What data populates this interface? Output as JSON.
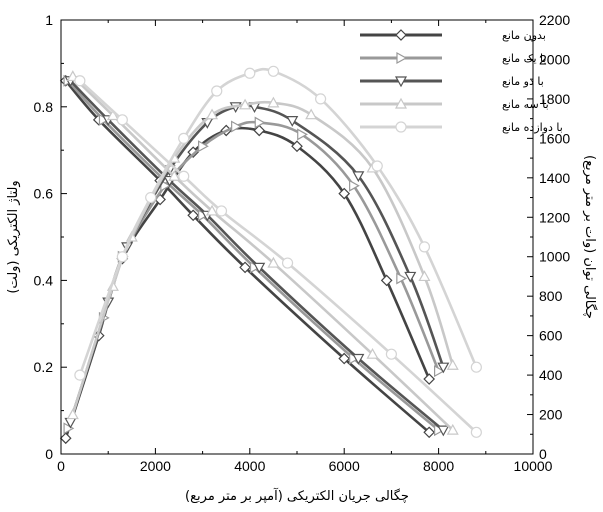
{
  "chart_data": {
    "type": "line",
    "xlabel": "چگالی جریان الکتریکی (آمپر بر متر مربع)",
    "ylabel_left": "ولتاژ الکتریکی (ولت)",
    "ylabel_right": "چگالی توان (وات بر متر مربع)",
    "xlim": [
      0,
      10000
    ],
    "ylim_left": [
      0,
      1
    ],
    "ylim_right": [
      0,
      2200
    ],
    "x_ticks": [
      "0",
      "2000",
      "4000",
      "6000",
      "8000",
      "10000"
    ],
    "y_left_ticks": [
      "0",
      "0.2",
      "0.4",
      "0.6",
      "0.8",
      "1"
    ],
    "y_right_ticks": [
      "0",
      "200",
      "400",
      "600",
      "800",
      "1000",
      "1200",
      "1400",
      "1600",
      "1800",
      "2000",
      "2200"
    ],
    "legend_position": "top-right",
    "series": [
      {
        "name": "بدون مانع",
        "color": "#444444",
        "marker": "diamond",
        "voltage": {
          "x": [
            100,
            800,
            2100,
            2800,
            3900,
            6000,
            7800
          ],
          "y": [
            0.86,
            0.77,
            0.63,
            0.55,
            0.43,
            0.22,
            0.05
          ]
        },
        "power": {
          "x": [
            100,
            800,
            1300,
            2100,
            2800,
            3500,
            4200,
            5000,
            6000,
            6900,
            7800
          ],
          "y": [
            80,
            600,
            990,
            1290,
            1530,
            1640,
            1640,
            1560,
            1320,
            880,
            380
          ]
        }
      },
      {
        "name": "با یک مانع",
        "color": "#999999",
        "marker": "triangle-right",
        "voltage": {
          "x": [
            150,
            900,
            2200,
            3000,
            4100,
            6200,
            8000
          ],
          "y": [
            0.86,
            0.77,
            0.63,
            0.55,
            0.43,
            0.22,
            0.055
          ]
        },
        "power": {
          "x": [
            150,
            900,
            1300,
            2200,
            3000,
            3700,
            4200,
            5100,
            6200,
            7200,
            8000
          ],
          "y": [
            130,
            690,
            1000,
            1360,
            1560,
            1660,
            1680,
            1620,
            1360,
            890,
            420
          ]
        }
      },
      {
        "name": "با دو مانع",
        "color": "#555555",
        "marker": "triangle-down",
        "voltage": {
          "x": [
            200,
            1000,
            2300,
            3100,
            4200,
            6300,
            8100
          ],
          "y": [
            0.86,
            0.77,
            0.63,
            0.55,
            0.43,
            0.22,
            0.055
          ]
        },
        "power": {
          "x": [
            200,
            1000,
            1400,
            2300,
            3100,
            3700,
            4100,
            4900,
            6300,
            7400,
            8100
          ],
          "y": [
            160,
            770,
            1050,
            1440,
            1680,
            1760,
            1760,
            1690,
            1410,
            900,
            440
          ]
        }
      },
      {
        "name": "با سه مانع",
        "color": "#c8c8c8",
        "marker": "triangle-up",
        "voltage": {
          "x": [
            250,
            1100,
            2400,
            3200,
            4500,
            6600,
            8300
          ],
          "y": [
            0.87,
            0.78,
            0.64,
            0.56,
            0.44,
            0.23,
            0.055
          ]
        },
        "power": {
          "x": [
            250,
            1100,
            1500,
            2400,
            3200,
            3900,
            4500,
            5300,
            6600,
            7700,
            8300
          ],
          "y": [
            200,
            850,
            1100,
            1500,
            1720,
            1770,
            1780,
            1720,
            1450,
            900,
            450
          ]
        }
      },
      {
        "name": "با دوازده مانع",
        "color": "#d4d4d4",
        "marker": "circle",
        "voltage": {
          "x": [
            400,
            1300,
            2600,
            3400,
            4800,
            7000,
            8800
          ],
          "y": [
            0.86,
            0.77,
            0.64,
            0.56,
            0.44,
            0.23,
            0.05
          ]
        },
        "power": {
          "x": [
            400,
            1300,
            1900,
            2600,
            3300,
            4000,
            4500,
            5500,
            6700,
            7700,
            8800
          ],
          "y": [
            400,
            1000,
            1300,
            1600,
            1840,
            1930,
            1940,
            1800,
            1460,
            1050,
            440
          ]
        }
      }
    ]
  }
}
